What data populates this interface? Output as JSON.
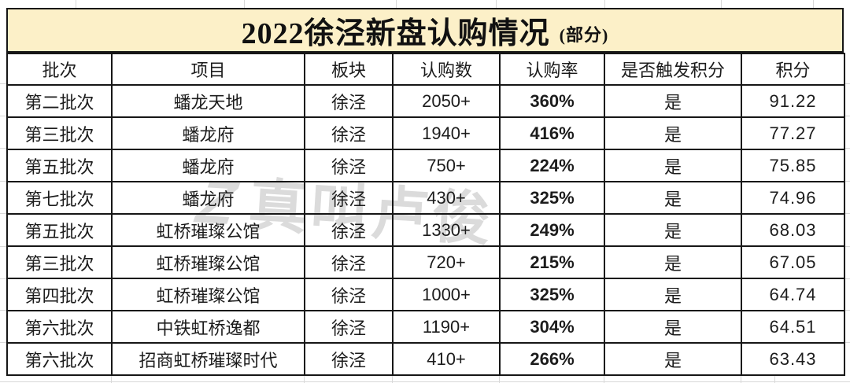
{
  "title": {
    "main": "2022徐泾新盘认购情况",
    "suffix": "(部分)"
  },
  "watermark": {
    "logo": "Z",
    "text": "真叫卢俊"
  },
  "colors": {
    "title_bg": "#FCF0C8",
    "border": "#161616",
    "text": "#1C1C1C",
    "watermark": "#C7C7C7"
  },
  "chart_data": {
    "type": "table",
    "title": "2022徐泾新盘认购情况(部分)",
    "columns": [
      "批次",
      "项目",
      "板块",
      "认购数",
      "认购率",
      "是否触发积分",
      "积分"
    ],
    "rows": [
      [
        "第二批次",
        "蟠龙天地",
        "徐泾",
        "2050+",
        "360%",
        "是",
        "91.22"
      ],
      [
        "第三批次",
        "蟠龙府",
        "徐泾",
        "1940+",
        "416%",
        "是",
        "77.27"
      ],
      [
        "第五批次",
        "蟠龙府",
        "徐泾",
        "750+",
        "224%",
        "是",
        "75.85"
      ],
      [
        "第七批次",
        "蟠龙府",
        "徐泾",
        "430+",
        "325%",
        "是",
        "74.96"
      ],
      [
        "第五批次",
        "虹桥璀璨公馆",
        "徐泾",
        "1330+",
        "249%",
        "是",
        "68.03"
      ],
      [
        "第三批次",
        "虹桥璀璨公馆",
        "徐泾",
        "720+",
        "215%",
        "是",
        "67.05"
      ],
      [
        "第四批次",
        "虹桥璀璨公馆",
        "徐泾",
        "1000+",
        "325%",
        "是",
        "64.74"
      ],
      [
        "第六批次",
        "中铁虹桥逸都",
        "徐泾",
        "1190+",
        "304%",
        "是",
        "64.51"
      ],
      [
        "第六批次",
        "招商虹桥璀璨时代",
        "徐泾",
        "410+",
        "266%",
        "是",
        "63.43"
      ]
    ]
  }
}
